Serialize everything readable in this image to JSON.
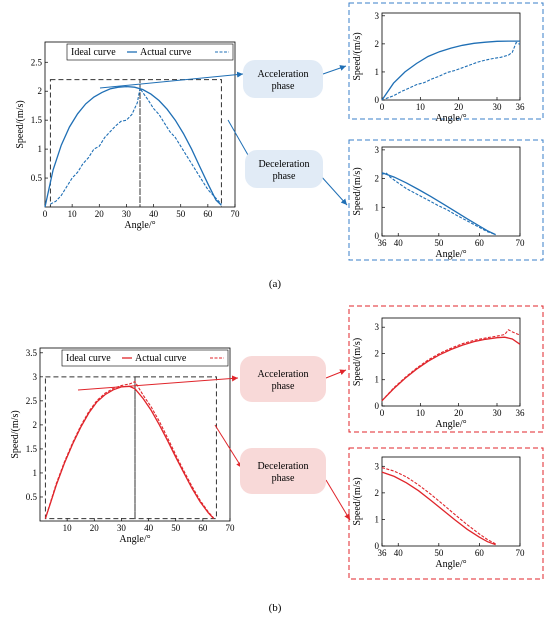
{
  "figure": {
    "panel_a_label": "(a)",
    "panel_b_label": "(b)"
  },
  "panel_a": {
    "color": "#1f6fb5",
    "box_color": "#3a7fc8",
    "bubble_color": "#e1ebf6",
    "legend": [
      "Ideal curve",
      "Actual curve"
    ],
    "phase_acc": [
      "Acceleration",
      "phase"
    ],
    "phase_dec": [
      "Deceleration",
      "phase"
    ]
  },
  "panel_b": {
    "color": "#e0252b",
    "box_color": "#e0252b",
    "bubble_color": "#f8d9d8",
    "legend": [
      "Ideal curve",
      "Actual curve"
    ],
    "phase_acc": [
      "Acceleration",
      "phase"
    ],
    "phase_dec": [
      "Deceleration",
      "phase"
    ]
  },
  "chart_data": [
    {
      "id": "a-main",
      "type": "line",
      "xlabel": "Angle/°",
      "ylabel": "Speed/(m/s)",
      "xlim": [
        0,
        70
      ],
      "ylim": [
        0,
        2.85
      ],
      "xticks": [
        0,
        10,
        20,
        30,
        40,
        50,
        60,
        70
      ],
      "yticks": [
        0.5,
        1,
        1.5,
        2,
        2.5
      ],
      "legend": "top",
      "series": [
        {
          "name": "Ideal curve",
          "style": "solid",
          "values": [
            [
              0,
              0
            ],
            [
              3,
              0.64
            ],
            [
              6,
              1.07
            ],
            [
              9,
              1.38
            ],
            [
              12,
              1.61
            ],
            [
              15,
              1.78
            ],
            [
              18,
              1.9
            ],
            [
              21,
              1.98
            ],
            [
              24,
              2.04
            ],
            [
              27,
              2.07
            ],
            [
              30,
              2.08
            ],
            [
              33,
              2.07
            ],
            [
              36,
              2.03
            ],
            [
              39,
              1.95
            ],
            [
              42,
              1.84
            ],
            [
              45,
              1.69
            ],
            [
              48,
              1.5
            ],
            [
              51,
              1.27
            ],
            [
              54,
              1.0
            ],
            [
              57,
              0.7
            ],
            [
              60,
              0.4
            ],
            [
              63,
              0.12
            ],
            [
              65,
              0.03
            ]
          ]
        },
        {
          "name": "Actual curve",
          "style": "dashed",
          "values": [
            [
              2,
              0.05
            ],
            [
              4,
              0.1
            ],
            [
              6,
              0.2
            ],
            [
              8,
              0.35
            ],
            [
              10,
              0.5
            ],
            [
              12,
              0.6
            ],
            [
              14,
              0.75
            ],
            [
              16,
              0.85
            ],
            [
              18,
              1.0
            ],
            [
              20,
              1.05
            ],
            [
              22,
              1.2
            ],
            [
              24,
              1.3
            ],
            [
              26,
              1.4
            ],
            [
              28,
              1.48
            ],
            [
              30,
              1.5
            ],
            [
              32,
              1.6
            ],
            [
              34,
              1.8
            ],
            [
              35,
              2.05
            ],
            [
              36,
              1.98
            ],
            [
              38,
              1.85
            ],
            [
              40,
              1.7
            ],
            [
              42,
              1.6
            ],
            [
              44,
              1.45
            ],
            [
              46,
              1.3
            ],
            [
              48,
              1.2
            ],
            [
              50,
              1.05
            ],
            [
              52,
              0.9
            ],
            [
              54,
              0.75
            ],
            [
              56,
              0.6
            ],
            [
              58,
              0.45
            ],
            [
              60,
              0.3
            ],
            [
              62,
              0.2
            ],
            [
              64,
              0.1
            ],
            [
              65,
              0.05
            ]
          ]
        }
      ]
    },
    {
      "id": "a-acc",
      "type": "line",
      "xlabel": "Angle/°",
      "ylabel": "Speed/(m/s)",
      "xlim": [
        0,
        36
      ],
      "ylim": [
        0,
        3.1
      ],
      "xticks": [
        0,
        10,
        20,
        30,
        36
      ],
      "yticks": [
        0,
        1,
        2,
        3
      ],
      "series": [
        {
          "name": "Ideal curve",
          "style": "solid",
          "values": [
            [
              0,
              0
            ],
            [
              3,
              0.6
            ],
            [
              6,
              1.0
            ],
            [
              9,
              1.3
            ],
            [
              12,
              1.55
            ],
            [
              15,
              1.72
            ],
            [
              18,
              1.85
            ],
            [
              21,
              1.95
            ],
            [
              24,
              2.02
            ],
            [
              27,
              2.06
            ],
            [
              30,
              2.09
            ],
            [
              33,
              2.1
            ],
            [
              36,
              2.1
            ]
          ]
        },
        {
          "name": "Actual curve",
          "style": "dashed",
          "values": [
            [
              1,
              0.05
            ],
            [
              3,
              0.15
            ],
            [
              5,
              0.3
            ],
            [
              7,
              0.42
            ],
            [
              9,
              0.55
            ],
            [
              11,
              0.62
            ],
            [
              13,
              0.75
            ],
            [
              15,
              0.85
            ],
            [
              17,
              0.98
            ],
            [
              19,
              1.05
            ],
            [
              21,
              1.15
            ],
            [
              23,
              1.25
            ],
            [
              25,
              1.35
            ],
            [
              27,
              1.42
            ],
            [
              29,
              1.48
            ],
            [
              31,
              1.52
            ],
            [
              33,
              1.6
            ],
            [
              34,
              1.7
            ],
            [
              35,
              2.05
            ],
            [
              36,
              1.98
            ]
          ]
        }
      ]
    },
    {
      "id": "a-dec",
      "type": "line",
      "xlabel": "Angle/°",
      "ylabel": "Speed/(m/s)",
      "xlim": [
        36,
        70
      ],
      "ylim": [
        0,
        3.1
      ],
      "xticks": [
        36,
        40,
        50,
        60,
        70
      ],
      "yticks": [
        0,
        1,
        2,
        3
      ],
      "series": [
        {
          "name": "Ideal curve",
          "style": "solid",
          "values": [
            [
              36,
              2.2
            ],
            [
              39,
              2.05
            ],
            [
              42,
              1.85
            ],
            [
              45,
              1.62
            ],
            [
              48,
              1.38
            ],
            [
              51,
              1.12
            ],
            [
              54,
              0.86
            ],
            [
              57,
              0.6
            ],
            [
              60,
              0.35
            ],
            [
              62,
              0.18
            ],
            [
              64,
              0.05
            ]
          ]
        },
        {
          "name": "Actual curve",
          "style": "dashed",
          "values": [
            [
              36,
              2.15
            ],
            [
              37,
              2.2
            ],
            [
              38,
              2.05
            ],
            [
              40,
              1.85
            ],
            [
              42,
              1.65
            ],
            [
              44,
              1.5
            ],
            [
              46,
              1.35
            ],
            [
              48,
              1.2
            ],
            [
              50,
              1.05
            ],
            [
              52,
              0.92
            ],
            [
              54,
              0.75
            ],
            [
              56,
              0.6
            ],
            [
              58,
              0.45
            ],
            [
              60,
              0.3
            ],
            [
              62,
              0.15
            ],
            [
              64,
              0.05
            ]
          ]
        }
      ]
    },
    {
      "id": "b-main",
      "type": "line",
      "xlabel": "Angle/°",
      "ylabel": "Speed/(m/s)",
      "xlim": [
        0,
        70
      ],
      "ylim": [
        0,
        3.6
      ],
      "xticks": [
        10,
        20,
        30,
        40,
        50,
        60,
        70
      ],
      "yticks": [
        0.5,
        1,
        1.5,
        2,
        2.5,
        3,
        3.5
      ],
      "legend": "top",
      "series": [
        {
          "name": "Ideal curve",
          "style": "solid",
          "values": [
            [
              2,
              0.05
            ],
            [
              4,
              0.4
            ],
            [
              6,
              0.75
            ],
            [
              9,
              1.2
            ],
            [
              12,
              1.6
            ],
            [
              15,
              1.95
            ],
            [
              18,
              2.25
            ],
            [
              21,
              2.48
            ],
            [
              24,
              2.63
            ],
            [
              27,
              2.73
            ],
            [
              30,
              2.79
            ],
            [
              33,
              2.8
            ],
            [
              35,
              2.75
            ],
            [
              38,
              2.55
            ],
            [
              41,
              2.3
            ],
            [
              44,
              2.0
            ],
            [
              47,
              1.67
            ],
            [
              50,
              1.33
            ],
            [
              53,
              1.0
            ],
            [
              56,
              0.68
            ],
            [
              59,
              0.4
            ],
            [
              62,
              0.17
            ],
            [
              64,
              0.05
            ]
          ]
        },
        {
          "name": "Actual curve",
          "style": "dashed",
          "values": [
            [
              2,
              0.05
            ],
            [
              4,
              0.42
            ],
            [
              6,
              0.78
            ],
            [
              9,
              1.23
            ],
            [
              12,
              1.63
            ],
            [
              15,
              1.98
            ],
            [
              18,
              2.28
            ],
            [
              21,
              2.51
            ],
            [
              24,
              2.66
            ],
            [
              27,
              2.76
            ],
            [
              30,
              2.82
            ],
            [
              33,
              2.85
            ],
            [
              35,
              2.9
            ],
            [
              38,
              2.62
            ],
            [
              41,
              2.37
            ],
            [
              44,
              2.07
            ],
            [
              47,
              1.73
            ],
            [
              50,
              1.38
            ],
            [
              53,
              1.04
            ],
            [
              56,
              0.72
            ],
            [
              59,
              0.43
            ],
            [
              62,
              0.19
            ],
            [
              64,
              0.06
            ]
          ]
        }
      ]
    },
    {
      "id": "b-acc",
      "type": "line",
      "xlabel": "Angle/°",
      "ylabel": "Speed/(m/s)",
      "xlim": [
        0,
        36
      ],
      "ylim": [
        0,
        3.35
      ],
      "xticks": [
        0,
        10,
        20,
        30,
        36
      ],
      "yticks": [
        0,
        1,
        2,
        3
      ],
      "series": [
        {
          "name": "Ideal curve",
          "style": "solid",
          "values": [
            [
              0,
              0.2
            ],
            [
              3,
              0.65
            ],
            [
              6,
              1.05
            ],
            [
              9,
              1.4
            ],
            [
              12,
              1.7
            ],
            [
              15,
              1.95
            ],
            [
              18,
              2.15
            ],
            [
              21,
              2.32
            ],
            [
              24,
              2.45
            ],
            [
              27,
              2.54
            ],
            [
              30,
              2.6
            ],
            [
              32,
              2.62
            ],
            [
              34,
              2.55
            ],
            [
              36,
              2.35
            ]
          ]
        },
        {
          "name": "Actual curve",
          "style": "dashed",
          "values": [
            [
              0,
              0.2
            ],
            [
              3,
              0.68
            ],
            [
              6,
              1.08
            ],
            [
              9,
              1.44
            ],
            [
              12,
              1.75
            ],
            [
              15,
              2.0
            ],
            [
              18,
              2.2
            ],
            [
              21,
              2.37
            ],
            [
              24,
              2.5
            ],
            [
              27,
              2.59
            ],
            [
              30,
              2.66
            ],
            [
              32,
              2.72
            ],
            [
              33,
              2.9
            ],
            [
              34,
              2.82
            ],
            [
              36,
              2.7
            ]
          ]
        }
      ]
    },
    {
      "id": "b-dec",
      "type": "line",
      "xlabel": "Angle/°",
      "ylabel": "Speed/(m/s)",
      "xlim": [
        36,
        70
      ],
      "ylim": [
        0,
        3.35
      ],
      "xticks": [
        36,
        40,
        50,
        60,
        70
      ],
      "yticks": [
        0,
        1,
        2,
        3
      ],
      "series": [
        {
          "name": "Ideal curve",
          "style": "solid",
          "values": [
            [
              36,
              2.78
            ],
            [
              39,
              2.62
            ],
            [
              42,
              2.38
            ],
            [
              45,
              2.08
            ],
            [
              48,
              1.72
            ],
            [
              51,
              1.35
            ],
            [
              54,
              0.98
            ],
            [
              57,
              0.63
            ],
            [
              60,
              0.33
            ],
            [
              62,
              0.16
            ],
            [
              64,
              0.05
            ]
          ]
        },
        {
          "name": "Actual curve",
          "style": "dashed",
          "values": [
            [
              36,
              2.95
            ],
            [
              39,
              2.82
            ],
            [
              42,
              2.6
            ],
            [
              45,
              2.3
            ],
            [
              48,
              1.95
            ],
            [
              51,
              1.57
            ],
            [
              54,
              1.18
            ],
            [
              57,
              0.8
            ],
            [
              60,
              0.45
            ],
            [
              62,
              0.24
            ],
            [
              64,
              0.08
            ]
          ]
        }
      ]
    }
  ]
}
